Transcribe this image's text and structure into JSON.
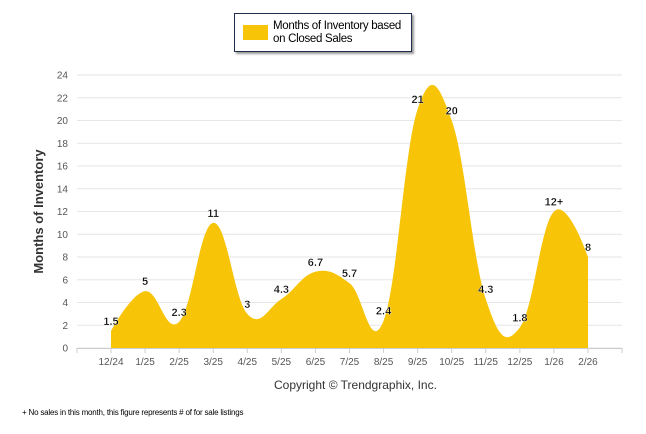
{
  "chart_data": {
    "type": "area",
    "smoothing": "spline",
    "legend": {
      "label": "Months of Inventory based on Closed Sales",
      "placement": "top-center"
    },
    "ylabel": "Months of Inventory",
    "xlabel": "",
    "ylim": [
      0,
      24
    ],
    "yticks": [
      0,
      2,
      4,
      6,
      8,
      10,
      12,
      14,
      16,
      18,
      20,
      22,
      24
    ],
    "grid": true,
    "categories": [
      "12/24",
      "1/25",
      "2/25",
      "3/25",
      "4/25",
      "5/25",
      "6/25",
      "7/25",
      "8/25",
      "9/25",
      "10/25",
      "11/25",
      "12/25",
      "1/26",
      "2/26"
    ],
    "series": [
      {
        "name": "Months of Inventory based on Closed Sales",
        "values": [
          1.5,
          5,
          2.3,
          11,
          3,
          4.3,
          6.7,
          5.7,
          2.4,
          21,
          20,
          4.3,
          1.8,
          12,
          8
        ],
        "labels": [
          "1.5",
          "5",
          "2.3",
          "11",
          "3",
          "4.3",
          "6.7",
          "5.7",
          "2.4",
          "21",
          "20",
          "4.3",
          "1.8",
          "12+",
          "8"
        ],
        "color": "#f7c408"
      }
    ]
  },
  "copyright": "Copyright © Trendgraphix, Inc.",
  "footnote": "+  No sales in this month, this figure represents # of for sale listings"
}
